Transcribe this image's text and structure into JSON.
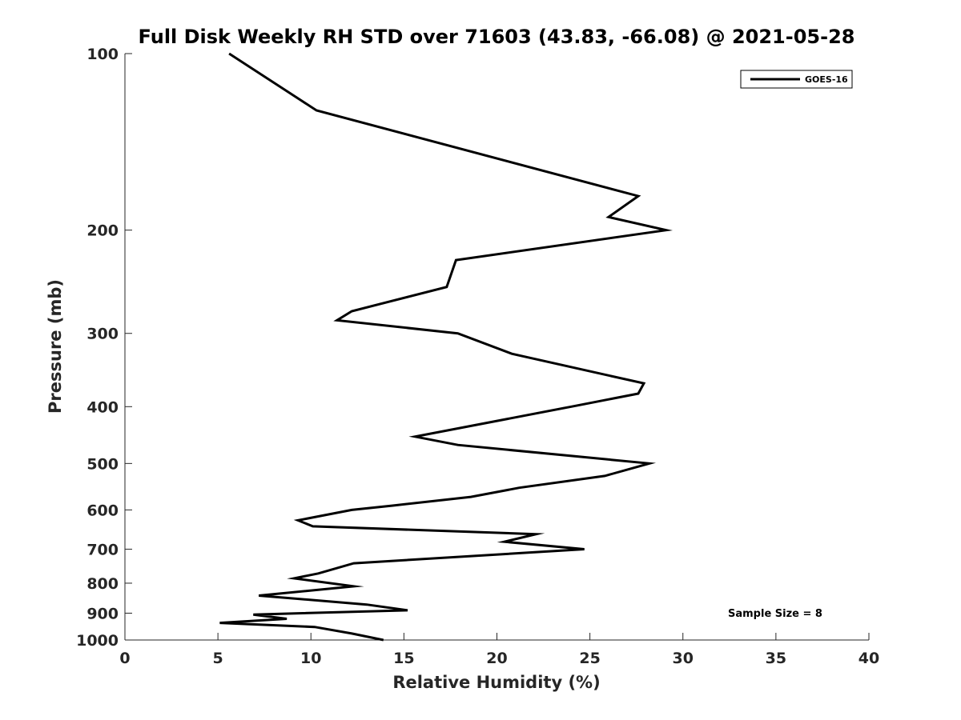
{
  "chart_data": {
    "type": "line",
    "title": "Full Disk Weekly RH STD over 71603 (43.83, -66.08) @ 2021-05-28",
    "xlabel": "Relative Humidity (%)",
    "ylabel": "Pressure (mb)",
    "xlim": [
      0,
      40
    ],
    "ylim": [
      100,
      1000
    ],
    "y_scale": "log",
    "y_reversed": true,
    "x_ticks": [
      0,
      5,
      10,
      15,
      20,
      25,
      30,
      35,
      40
    ],
    "y_ticks": [
      100,
      200,
      300,
      400,
      500,
      600,
      700,
      800,
      900,
      1000
    ],
    "grid": false,
    "legend_position": "top-right",
    "annotation": "Sample Size = 8",
    "series": [
      {
        "name": "GOES-16",
        "color": "#000000",
        "points": [
          {
            "x": 5.6,
            "p": 100
          },
          {
            "x": 10.3,
            "p": 125
          },
          {
            "x": 27.6,
            "p": 175
          },
          {
            "x": 26.0,
            "p": 190
          },
          {
            "x": 29.1,
            "p": 200
          },
          {
            "x": 17.8,
            "p": 225
          },
          {
            "x": 17.3,
            "p": 250
          },
          {
            "x": 12.2,
            "p": 275
          },
          {
            "x": 11.4,
            "p": 285
          },
          {
            "x": 17.9,
            "p": 300
          },
          {
            "x": 20.8,
            "p": 325
          },
          {
            "x": 27.9,
            "p": 365
          },
          {
            "x": 27.6,
            "p": 380
          },
          {
            "x": 24.0,
            "p": 400
          },
          {
            "x": 15.6,
            "p": 450
          },
          {
            "x": 17.9,
            "p": 465
          },
          {
            "x": 28.2,
            "p": 500
          },
          {
            "x": 25.8,
            "p": 525
          },
          {
            "x": 21.2,
            "p": 550
          },
          {
            "x": 18.6,
            "p": 570
          },
          {
            "x": 14.4,
            "p": 590
          },
          {
            "x": 12.2,
            "p": 600
          },
          {
            "x": 9.3,
            "p": 625
          },
          {
            "x": 10.1,
            "p": 640
          },
          {
            "x": 22.1,
            "p": 660
          },
          {
            "x": 20.4,
            "p": 680
          },
          {
            "x": 24.7,
            "p": 700
          },
          {
            "x": 12.3,
            "p": 740
          },
          {
            "x": 10.4,
            "p": 770
          },
          {
            "x": 9.1,
            "p": 785
          },
          {
            "x": 12.3,
            "p": 810
          },
          {
            "x": 7.2,
            "p": 840
          },
          {
            "x": 13.0,
            "p": 870
          },
          {
            "x": 15.2,
            "p": 890
          },
          {
            "x": 6.9,
            "p": 905
          },
          {
            "x": 8.7,
            "p": 920
          },
          {
            "x": 5.1,
            "p": 935
          },
          {
            "x": 10.2,
            "p": 950
          },
          {
            "x": 12.2,
            "p": 975
          },
          {
            "x": 13.9,
            "p": 1000
          }
        ]
      }
    ]
  }
}
